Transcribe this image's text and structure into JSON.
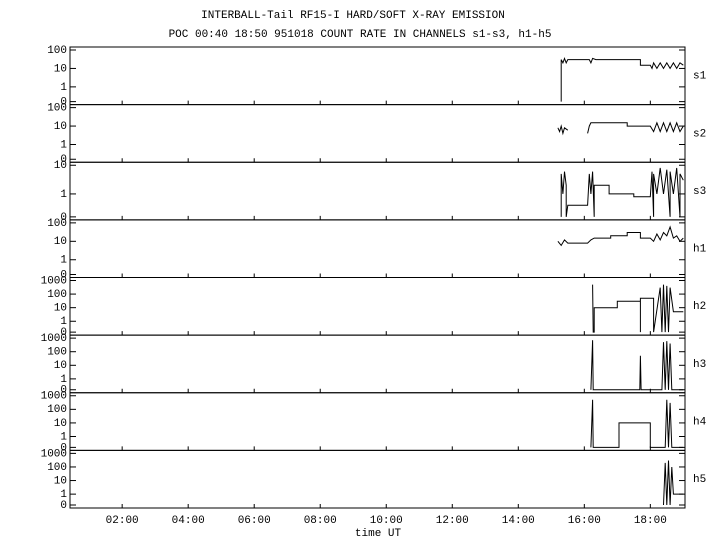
{
  "chart_data": {
    "type": "line",
    "title": "INTERBALL-Tail RF15-I HARD/SOFT X-RAY EMISSION",
    "subtitle": "POC 00:40 18:50 951018  COUNT RATE IN CHANNELS s1-s3, h1-h5",
    "x_label": "time UT",
    "color": "#000000",
    "xlim": [
      0.42,
      19.05
    ],
    "xticks": [
      {
        "value": 2,
        "label": "02:00"
      },
      {
        "value": 4,
        "label": "04:00"
      },
      {
        "value": 6,
        "label": "06:00"
      },
      {
        "value": 8,
        "label": "08:00"
      },
      {
        "value": 10,
        "label": "10:00"
      },
      {
        "value": 12,
        "label": "12:00"
      },
      {
        "value": 14,
        "label": "14:00"
      },
      {
        "value": 16,
        "label": "16:00"
      },
      {
        "value": 18,
        "label": "18:00"
      }
    ],
    "panels": [
      {
        "name": "s1",
        "ylim": [
          0,
          100
        ],
        "yticks": [
          0,
          1,
          10,
          100
        ],
        "x": [
          15.3,
          15.3,
          15.35,
          15.4,
          15.45,
          15.5,
          16.15,
          16.2,
          16.25,
          16.35,
          17.7,
          17.7,
          18.0,
          18.05,
          18.1,
          18.2,
          18.3,
          18.4,
          18.5,
          18.6,
          18.7,
          18.8,
          18.9,
          19.0
        ],
        "values": [
          0,
          30,
          20,
          35,
          20,
          30,
          30,
          20,
          35,
          30,
          30,
          15,
          15,
          10,
          20,
          10,
          20,
          10,
          20,
          10,
          20,
          10,
          20,
          15
        ]
      },
      {
        "name": "s2",
        "ylim": [
          0,
          100
        ],
        "yticks": [
          0,
          1,
          10,
          100
        ],
        "x": [
          15.2,
          15.25,
          15.3,
          15.35,
          15.4,
          15.5,
          15.8,
          16.1,
          16.15,
          16.2,
          16.3,
          17.3,
          17.3,
          18.0,
          18.1,
          18.2,
          18.3,
          18.4,
          18.5,
          18.6,
          18.7,
          18.8,
          18.9,
          19.0
        ],
        "values": [
          8,
          5,
          10,
          4,
          8,
          6,
          null,
          4,
          10,
          15,
          15,
          15,
          10,
          10,
          5,
          15,
          5,
          15,
          5,
          15,
          5,
          15,
          5,
          10
        ]
      },
      {
        "name": "s3",
        "ylim": [
          0,
          10
        ],
        "yticks": [
          0,
          1,
          10
        ],
        "x": [
          15.3,
          15.3,
          15.35,
          15.4,
          15.45,
          15.45,
          15.5,
          16.1,
          16.15,
          16.2,
          16.25,
          16.3,
          16.3,
          16.75,
          16.75,
          17.5,
          17.5,
          18.0,
          18.05,
          18.1,
          18.1,
          18.2,
          18.3,
          18.4,
          18.5,
          18.6,
          18.6,
          18.7,
          18.8,
          18.9,
          18.9,
          19.0
        ],
        "values": [
          0,
          5,
          1,
          6,
          2,
          0,
          0.4,
          0.4,
          5,
          1,
          6,
          0,
          2,
          2,
          1,
          1,
          0.8,
          0.8,
          6,
          0,
          5,
          1,
          8,
          1,
          7,
          0,
          6,
          1,
          8,
          0,
          5,
          3
        ]
      },
      {
        "name": "h1",
        "ylim": [
          0,
          100
        ],
        "yticks": [
          0,
          1,
          10,
          100
        ],
        "x": [
          15.2,
          15.3,
          15.4,
          15.5,
          16.1,
          16.2,
          16.3,
          16.8,
          16.8,
          17.3,
          17.3,
          17.7,
          17.7,
          18.0,
          18.1,
          18.2,
          18.3,
          18.4,
          18.5,
          18.6,
          18.7,
          18.8,
          18.9,
          19.0
        ],
        "values": [
          10,
          6,
          12,
          8,
          8,
          12,
          15,
          15,
          20,
          20,
          30,
          30,
          15,
          15,
          10,
          25,
          12,
          30,
          20,
          60,
          15,
          20,
          10,
          15
        ]
      },
      {
        "name": "h2",
        "ylim": [
          0,
          1000
        ],
        "yticks": [
          0,
          1,
          10,
          100,
          1000
        ],
        "x": [
          16.25,
          16.27,
          16.3,
          16.3,
          17.0,
          17.0,
          17.7,
          17.7,
          17.7,
          18.1,
          18.1,
          18.3,
          18.35,
          18.4,
          18.45,
          18.5,
          18.55,
          18.6,
          18.7,
          19.0
        ],
        "values": [
          500,
          0,
          0,
          10,
          10,
          30,
          30,
          0,
          50,
          50,
          0,
          300,
          0,
          500,
          0,
          400,
          0,
          300,
          5,
          5
        ]
      },
      {
        "name": "h3",
        "ylim": [
          0,
          1000
        ],
        "yticks": [
          0,
          1,
          10,
          100,
          1000
        ],
        "x": [
          16.2,
          16.25,
          16.27,
          17.68,
          17.7,
          17.72,
          18.35,
          18.4,
          18.45,
          18.5,
          18.55,
          18.6,
          18.65,
          19.0
        ],
        "values": [
          0,
          700,
          0,
          0,
          50,
          0,
          0,
          500,
          0,
          600,
          0,
          400,
          0,
          0
        ]
      },
      {
        "name": "h4",
        "ylim": [
          0,
          1000
        ],
        "yticks": [
          0,
          1,
          10,
          100,
          1000
        ],
        "x": [
          16.2,
          16.25,
          16.27,
          17.05,
          17.05,
          18.0,
          18.0,
          18.45,
          18.5,
          18.55,
          18.6,
          18.65,
          19.0
        ],
        "values": [
          0,
          500,
          0,
          0,
          10,
          10,
          0,
          0,
          500,
          0,
          300,
          0,
          0
        ]
      },
      {
        "name": "h5",
        "ylim": [
          0,
          1000
        ],
        "yticks": [
          0,
          1,
          10,
          100,
          1000
        ],
        "x": [
          18.4,
          18.45,
          18.5,
          18.55,
          18.6,
          18.65,
          18.7,
          19.0
        ],
        "values": [
          0,
          200,
          0,
          300,
          0,
          100,
          1,
          1
        ]
      }
    ]
  }
}
